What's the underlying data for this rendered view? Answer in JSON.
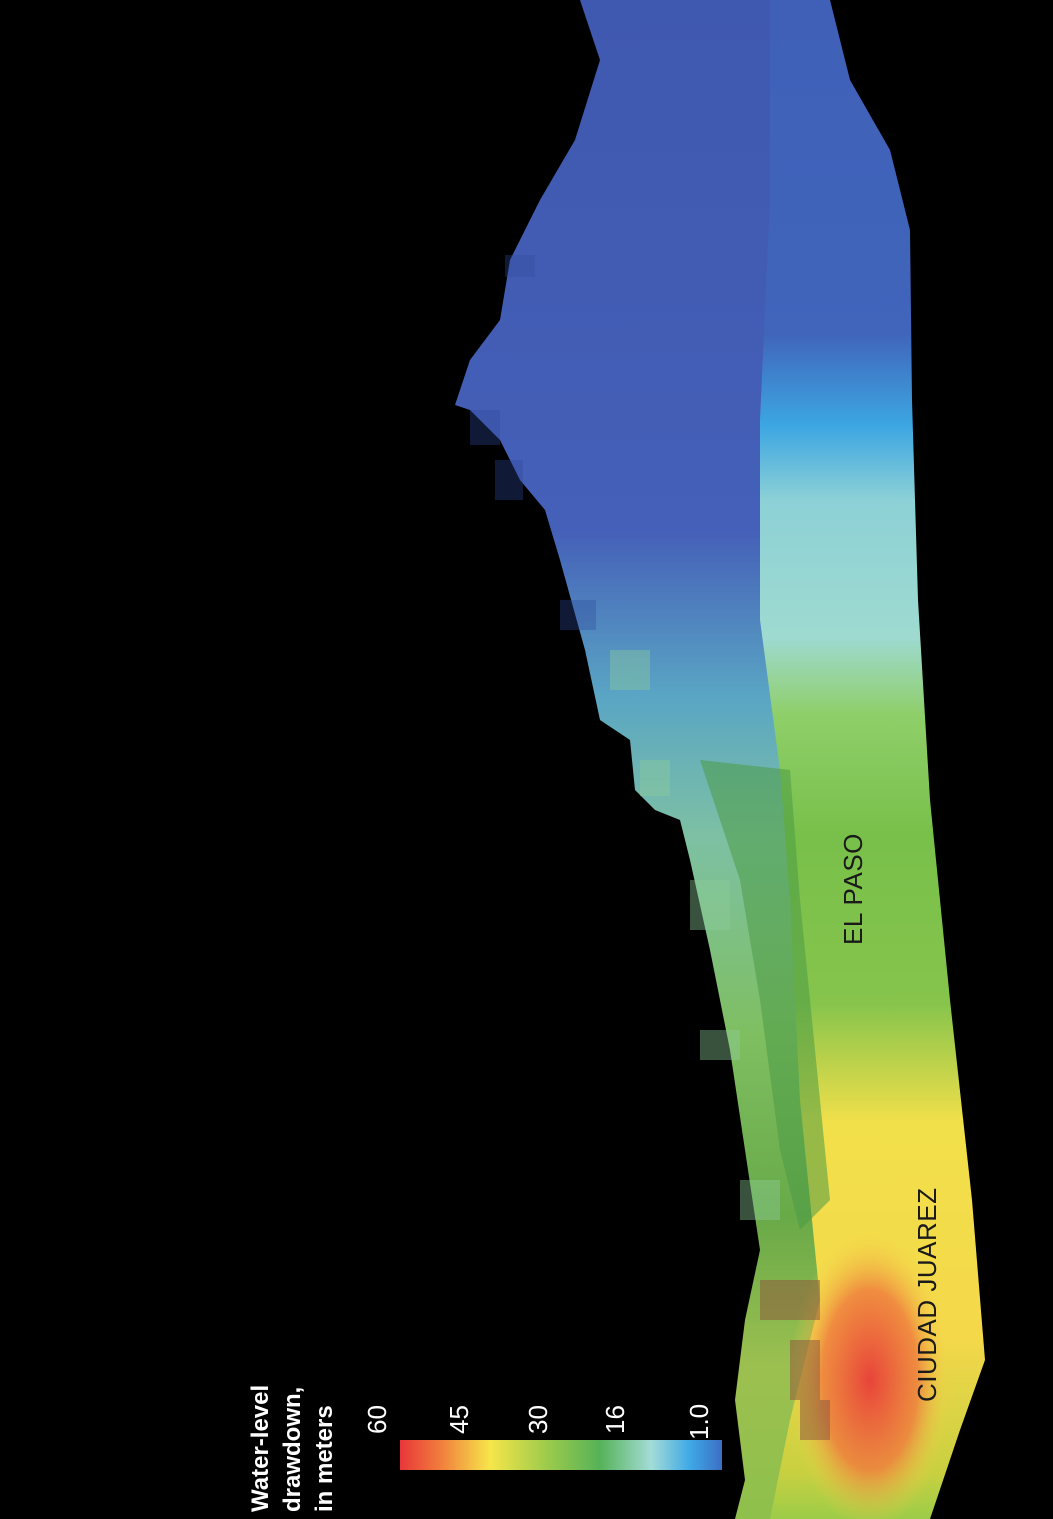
{
  "map": {
    "places": [
      {
        "name": "EL PASO"
      },
      {
        "name": "CIUDAD JUAREZ"
      }
    ]
  },
  "legend": {
    "title_lines": [
      "Water-level",
      "drawdown,",
      "in meters"
    ],
    "ticks": [
      "60",
      "45",
      "30",
      "16",
      "1.0"
    ],
    "colors": [
      "#e8373a",
      "#f07a3c",
      "#f6e64a",
      "#9fcc4b",
      "#56b257",
      "#a3dcd6",
      "#3fa9e6",
      "#3c6ec4"
    ]
  }
}
